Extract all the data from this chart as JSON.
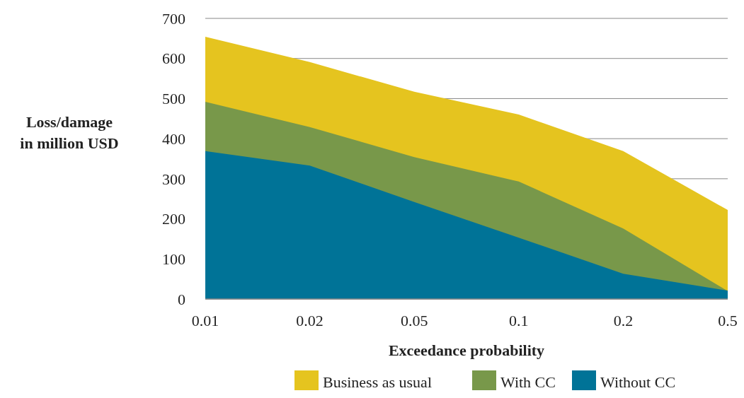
{
  "chart_data": {
    "type": "area",
    "xlabel": "Exceedance probability",
    "ylabel": "Loss/damage\nin million USD",
    "categories": [
      "0.01",
      "0.02",
      "0.05",
      "0.1",
      "0.2",
      "0.5"
    ],
    "series": [
      {
        "name": "Business as usual",
        "color": "#e5c41f",
        "values": [
          654,
          591,
          517,
          460,
          369,
          222
        ]
      },
      {
        "name": "With CC",
        "color": "#78984a",
        "values": [
          492,
          429,
          354,
          293,
          176,
          20
        ]
      },
      {
        "name": "Without CC",
        "color": "#007397",
        "values": [
          369,
          333,
          242,
          153,
          63,
          21
        ]
      }
    ],
    "ylim": [
      0,
      700
    ],
    "yticks": [
      0,
      100,
      200,
      300,
      400,
      500,
      600,
      700
    ],
    "grid": "y",
    "legend": "bottom"
  }
}
